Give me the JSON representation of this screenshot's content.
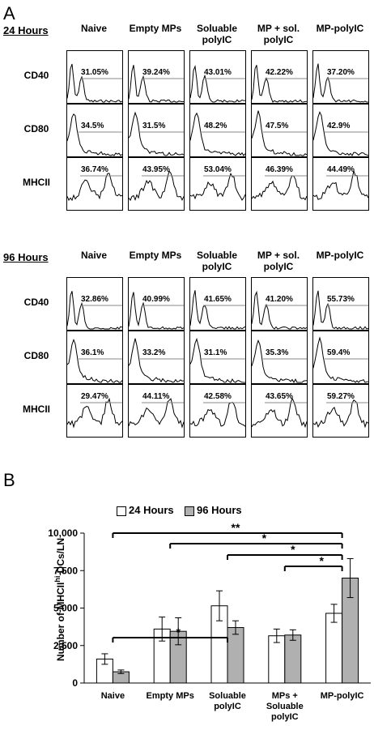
{
  "panel_a": {
    "letter": "A",
    "columns": [
      "Naive",
      "Empty MPs",
      "Soluable polyIC",
      "MP + sol. polyIC",
      "MP-polyIC"
    ],
    "rows": [
      "CD40",
      "CD80",
      "MHCII"
    ],
    "sections": [
      {
        "title": "24 Hours",
        "values": [
          [
            "31.05%",
            "39.24%",
            "43.01%",
            "42.22%",
            "37.20%"
          ],
          [
            "34.5%",
            "31.5%",
            "48.2%",
            "47.5%",
            "42.9%"
          ],
          [
            "36.74%",
            "43.95%",
            "53.04%",
            "46.39%",
            "44.49%"
          ]
        ]
      },
      {
        "title": "96 Hours",
        "values": [
          [
            "32.86%",
            "40.99%",
            "41.65%",
            "41.20%",
            "55.73%"
          ],
          [
            "36.1%",
            "33.2%",
            "31.1%",
            "35.3%",
            "59.4%"
          ],
          [
            "29.47%",
            "44.11%",
            "42.58%",
            "43.65%",
            "59.27%"
          ]
        ]
      }
    ]
  },
  "panel_b": {
    "letter": "B"
  },
  "chart_data": {
    "type": "bar",
    "title": "",
    "xlabel": "",
    "ylabel": "Number of MHCII^hi DCs/LN",
    "ylabel_main": "Number of MHCII",
    "ylabel_sup": "hi",
    "ylabel_tail": " DCs/LN",
    "ylim": [
      0,
      10000
    ],
    "yticks": [
      0,
      2500,
      5000,
      7500,
      10000
    ],
    "ytick_labels": [
      "0",
      "2,500",
      "5,000",
      "7,500",
      "10,000"
    ],
    "categories": [
      "Naive",
      "Empty MPs",
      "Soluable polyIC",
      "MPs + Soluable polyIC",
      "MP-polyIC"
    ],
    "series": [
      {
        "name": "24 Hours",
        "values": [
          1600,
          3600,
          5150,
          3150,
          4650
        ],
        "errors": [
          350,
          800,
          1000,
          450,
          600
        ],
        "color": "#ffffff"
      },
      {
        "name": "96 Hours",
        "values": [
          750,
          3450,
          3700,
          3200,
          7000
        ],
        "errors": [
          120,
          900,
          450,
          350,
          1300
        ],
        "color": "#b0b0b0"
      }
    ],
    "legend": {
      "position": "top"
    },
    "significance": [
      {
        "from": 0,
        "to": 4,
        "label": "**"
      },
      {
        "from": 1,
        "to": 4,
        "label": "*"
      },
      {
        "from": 2,
        "to": 4,
        "label": "*"
      },
      {
        "from": 3,
        "to": 4,
        "label": "*"
      },
      {
        "from": 0,
        "to": 2,
        "label": "*"
      }
    ]
  }
}
